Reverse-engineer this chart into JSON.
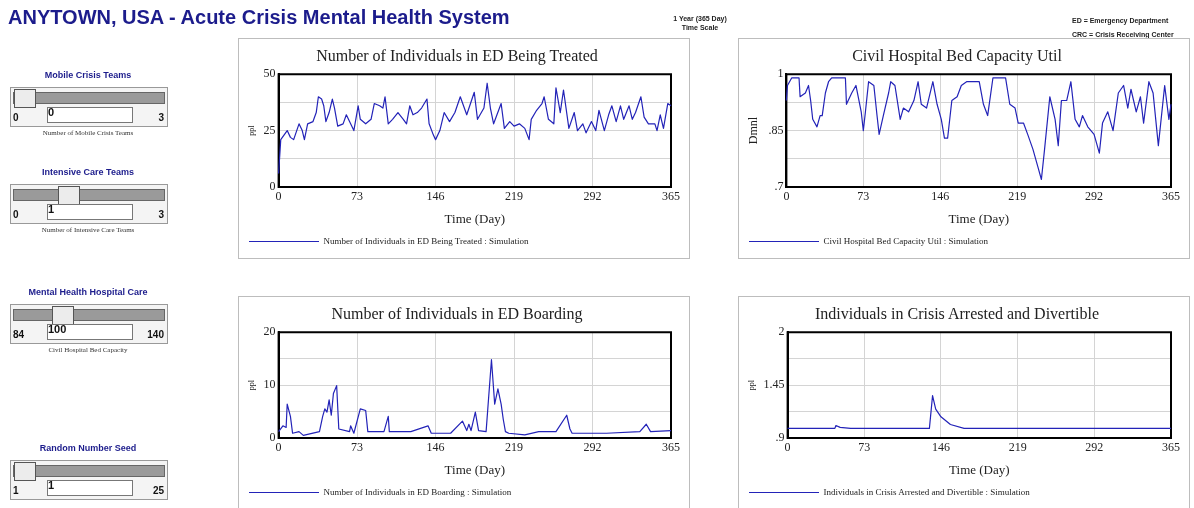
{
  "chart_data": [
    {
      "type": "other",
      "title": "ANYTOWN, USA - Acute Crisis Mental Health System",
      "annotations": [
        "1 Year (365 Day)",
        "Time Scale",
        "ED = Emergency Department",
        "CRC = Crisis Receiving Center",
        "Mobile Crisis Teams",
        "0",
        "0",
        "3",
        "Number of Mobile Crisis Teams",
        "Intensive Care Teams",
        "0",
        "1",
        "3",
        "Number of Intensive Care Teams",
        "Mental Health Hospital Care",
        "84",
        "100",
        "140",
        "Civil Hospital Bed Capacity",
        "Random Number Seed",
        "1",
        "1",
        "25"
      ]
    },
    {
      "type": "line",
      "title": "Number of Individuals in ED Being Treated",
      "xlabel": "Time (Day)",
      "ylabel": "ppl",
      "x": [
        0,
        2,
        8,
        11,
        14,
        19,
        22,
        24,
        27,
        32,
        35,
        37,
        40,
        42,
        44,
        47,
        50,
        52,
        55,
        60,
        63,
        66,
        70,
        74,
        76,
        81,
        86,
        89,
        94,
        97,
        99,
        102,
        106,
        111,
        116,
        119,
        122,
        125,
        129,
        133,
        138,
        140,
        144,
        146,
        150,
        154,
        159,
        164,
        169,
        175,
        182,
        185,
        191,
        194,
        197,
        200,
        207,
        210,
        215,
        219,
        224,
        229,
        233,
        235,
        240,
        245,
        247,
        251,
        256,
        258,
        262,
        265,
        270,
        275,
        278,
        283,
        286,
        291,
        295,
        298,
        303,
        307,
        310,
        314,
        318,
        321,
        326,
        329,
        332,
        337,
        340,
        344,
        350,
        352,
        355,
        358,
        362,
        365
      ],
      "series": [
        {
          "name": "Number of Individuals in ED Being Treated : Simulation",
          "color": "#2323b8",
          "values": [
            6,
            21,
            25,
            22,
            21,
            28,
            25,
            21,
            28,
            29,
            33,
            40,
            39,
            36,
            29,
            33,
            39,
            35,
            27,
            28,
            32,
            29,
            25,
            36,
            30,
            28,
            30,
            37,
            36,
            35,
            40,
            28,
            30,
            33,
            30,
            28,
            36,
            32,
            33,
            35,
            39,
            28,
            23,
            21,
            25,
            33,
            29,
            33,
            40,
            32,
            42,
            30,
            35,
            46,
            35,
            28,
            37,
            26,
            29,
            27,
            28,
            26,
            21,
            30,
            34,
            37,
            40,
            30,
            28,
            44,
            33,
            43,
            26,
            33,
            25,
            28,
            24,
            29,
            25,
            34,
            25,
            32,
            36,
            29,
            36,
            30,
            36,
            30,
            33,
            40,
            31,
            28,
            28,
            25,
            32,
            26,
            37,
            36
          ]
        }
      ],
      "xlim": [
        0,
        365
      ],
      "xticks": [
        0,
        73,
        146,
        219,
        292,
        365
      ],
      "ylim": [
        0,
        50
      ],
      "yticks": [
        0,
        {
          "value": 12.5,
          "label": null
        },
        25,
        {
          "value": 37.5,
          "label": null
        },
        50
      ],
      "grid": true,
      "legend": "bottom"
    },
    {
      "type": "line",
      "title": "Civil Hospital Bed Capacity Util",
      "xlabel": "Time (Day)",
      "ylabel": "Dmnl",
      "x": [
        0,
        1,
        5,
        12,
        13,
        18,
        21,
        23,
        25,
        29,
        32,
        34,
        37,
        40,
        43,
        56,
        57,
        62,
        66,
        71,
        73,
        75,
        78,
        83,
        86,
        88,
        92,
        97,
        99,
        103,
        108,
        111,
        116,
        121,
        125,
        128,
        133,
        139,
        143,
        147,
        150,
        153,
        157,
        162,
        166,
        171,
        177,
        183,
        187,
        191,
        196,
        208,
        212,
        217,
        220,
        225,
        229,
        234,
        239,
        242,
        245,
        250,
        255,
        258,
        261,
        266,
        270,
        274,
        278,
        281,
        286,
        292,
        297,
        300,
        305,
        310,
        315,
        320,
        324,
        327,
        332,
        336,
        339,
        344,
        348,
        353,
        359,
        363,
        365
      ],
      "series": [
        {
          "name": "Civil Hospital Bed Capacity Util : Simulation",
          "color": "#2323b8",
          "values": [
            0.93,
            0.97,
            0.99,
            0.99,
            0.94,
            0.95,
            0.97,
            0.93,
            0.88,
            0.86,
            0.89,
            0.89,
            0.95,
            0.98,
            0.99,
            0.99,
            0.92,
            0.95,
            0.97,
            0.9,
            0.85,
            0.9,
            0.98,
            0.97,
            0.89,
            0.84,
            0.89,
            0.95,
            0.98,
            0.97,
            0.88,
            0.91,
            0.9,
            0.93,
            0.98,
            0.92,
            0.91,
            0.98,
            0.92,
            0.88,
            0.83,
            0.83,
            0.93,
            0.94,
            0.97,
            0.98,
            0.98,
            0.98,
            0.92,
            0.89,
            0.99,
            0.99,
            0.92,
            0.91,
            0.87,
            0.87,
            0.84,
            0.8,
            0.75,
            0.72,
            0.8,
            0.94,
            0.88,
            0.81,
            0.93,
            0.93,
            0.98,
            0.88,
            0.86,
            0.89,
            0.86,
            0.84,
            0.79,
            0.87,
            0.9,
            0.85,
            0.95,
            0.97,
            0.91,
            0.96,
            0.9,
            0.94,
            0.87,
            0.98,
            0.95,
            0.81,
            0.97,
            0.88,
            0.92
          ]
        }
      ],
      "xlim": [
        0,
        365
      ],
      "xticks": [
        0,
        73,
        146,
        219,
        292,
        365
      ],
      "ylim": [
        0.7,
        1
      ],
      "yticks": [
        {
          "value": 0.7,
          "label": ".7"
        },
        {
          "value": 0.775,
          "label": null
        },
        {
          "value": 0.85,
          "label": ".85"
        },
        {
          "value": 0.925,
          "label": null
        },
        1
      ],
      "grid": true,
      "legend": "bottom"
    },
    {
      "type": "line",
      "title": "Number of Individuals in ED Boarding",
      "xlabel": "Time (Day)",
      "ylabel": "ppl",
      "x": [
        0,
        4,
        7,
        8,
        11,
        13,
        19,
        23,
        38,
        41,
        43,
        45,
        47,
        49,
        51,
        54,
        56,
        66,
        67,
        70,
        76,
        81,
        83,
        98,
        102,
        103,
        123,
        139,
        142,
        160,
        171,
        175,
        177,
        179,
        183,
        186,
        193,
        198,
        201,
        204,
        207,
        209,
        211,
        214,
        229,
        242,
        258,
        268,
        271,
        273,
        305,
        336,
        342,
        346,
        365
      ],
      "series": [
        {
          "name": "Number of Individuals in ED Boarding : Simulation",
          "color": "#2323b8",
          "values": [
            1.2,
            2.3,
            2,
            6.4,
            4.1,
            0.9,
            1.2,
            0.5,
            1.2,
            4.1,
            5.5,
            4.9,
            7.2,
            4.3,
            8.4,
            9.9,
            1.7,
            1.2,
            2.3,
            0.9,
            5.5,
            5.2,
            1.2,
            1.2,
            4.1,
            1.2,
            1.2,
            2.3,
            0.9,
            0.9,
            3.2,
            1.4,
            2.6,
            1.4,
            4.9,
            1.4,
            1.2,
            14.8,
            6.4,
            9.3,
            6.4,
            3.5,
            1.2,
            0.9,
            0.6,
            1.2,
            1.2,
            4.3,
            1.7,
            0.9,
            0.9,
            1.2,
            2.6,
            1.2,
            1.4
          ]
        }
      ],
      "xlim": [
        0,
        365
      ],
      "xticks": [
        0,
        73,
        146,
        219,
        292,
        365
      ],
      "ylim": [
        0,
        20
      ],
      "yticks": [
        0,
        {
          "value": 5,
          "label": null
        },
        10,
        {
          "value": 15,
          "label": null
        },
        20
      ],
      "grid": true,
      "legend": "bottom"
    },
    {
      "type": "line",
      "title": "Individuals in Crisis Arrested and Divertible",
      "xlabel": "Time (Day)",
      "ylabel": "ppl",
      "x": [
        0,
        45,
        46,
        50,
        60,
        135,
        138,
        141,
        146,
        155,
        168,
        365
      ],
      "series": [
        {
          "name": "Individuals in Crisis Arrested and Divertible : Simulation",
          "color": "#2323b8",
          "values": [
            1,
            1,
            1.03,
            1.01,
            1,
            1,
            1.34,
            1.2,
            1.12,
            1.04,
            1,
            1
          ]
        }
      ],
      "xlim": [
        0,
        365
      ],
      "xticks": [
        0,
        73,
        146,
        219,
        292,
        365
      ],
      "ylim": [
        0.9,
        2
      ],
      "yticks": [
        {
          "value": 0.9,
          "label": ".9"
        },
        {
          "value": 1.175,
          "label": null
        },
        1.45,
        {
          "value": 1.725,
          "label": null
        },
        2
      ],
      "grid": true,
      "legend": "bottom"
    }
  ]
}
